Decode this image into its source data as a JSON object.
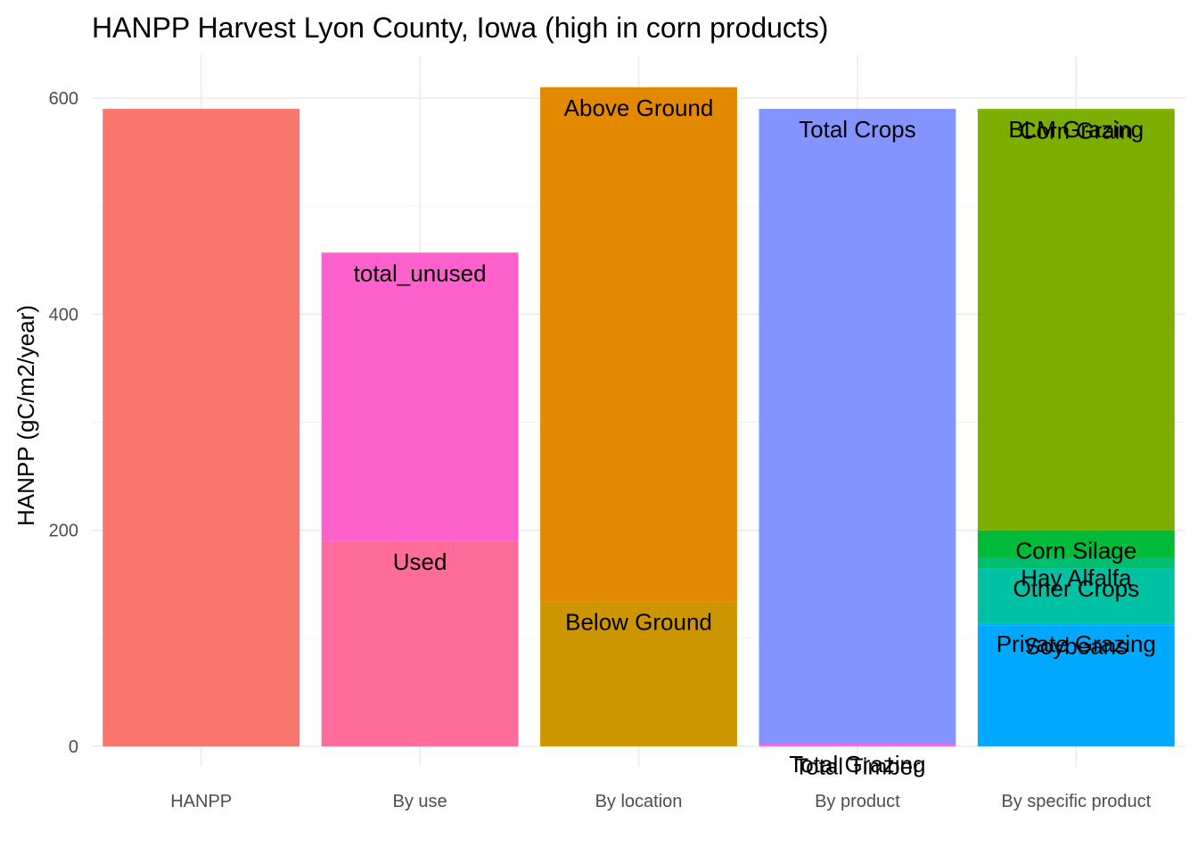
{
  "chart_data": {
    "type": "bar",
    "stacked": true,
    "title": "HANPP Harvest Lyon County, Iowa (high in corn products)",
    "xlabel": "",
    "ylabel": "HANPP (gC/m2/year)",
    "ylim": [
      0,
      640
    ],
    "yticks": [
      0,
      200,
      400,
      600
    ],
    "grid": true,
    "legend": "none",
    "categories": [
      "HANPP",
      "By use",
      "By location",
      "By product",
      "By specific product"
    ],
    "stacks": [
      {
        "category": "HANPP",
        "segments": [
          {
            "name": "",
            "value": 590,
            "color": "#F8766D",
            "label": ""
          }
        ]
      },
      {
        "category": "By use",
        "segments": [
          {
            "name": "Used",
            "value": 190,
            "color": "#FF6C9C",
            "label": "Used"
          },
          {
            "name": "total_unused",
            "value": 267,
            "color": "#FF61CC",
            "label": "total_unused"
          }
        ]
      },
      {
        "category": "By location",
        "segments": [
          {
            "name": "Below Ground",
            "value": 134,
            "color": "#CD9600",
            "label": "Below Ground"
          },
          {
            "name": "Above Ground",
            "value": 476,
            "color": "#E38900",
            "label": "Above Ground"
          }
        ]
      },
      {
        "category": "By product",
        "segments": [
          {
            "name": "Total Timber",
            "value": 0.5,
            "color": "#F763E0",
            "label": "Total Timber"
          },
          {
            "name": "Total Grazing",
            "value": 2,
            "color": "#E76BF3",
            "label": "Total Grazing"
          },
          {
            "name": "Total Crops",
            "value": 587.5,
            "color": "#8494FF",
            "label": "Total Crops"
          }
        ]
      },
      {
        "category": "By specific product",
        "segments": [
          {
            "name": "Soybeans",
            "value": 112,
            "color": "#00A9FF",
            "label": "Soybeans"
          },
          {
            "name": "Private Grazing",
            "value": 2,
            "color": "#00B4F0",
            "label": "Private Grazing"
          },
          {
            "name": "Other Crops",
            "value": 51,
            "color": "#00C1A3",
            "label": "Other Crops"
          },
          {
            "name": "Hay Alfalfa",
            "value": 10,
            "color": "#00BE70",
            "label": "Hay Alfalfa"
          },
          {
            "name": "Corn Silage",
            "value": 25,
            "color": "#00BA38",
            "label": "Corn Silage"
          },
          {
            "name": "Corn Grain",
            "value": 389,
            "color": "#7CAE00",
            "label": "Corn Grain"
          },
          {
            "name": "BLM Grazing",
            "value": 1,
            "color": "#7CAE00",
            "label": "BLM Grazing"
          }
        ]
      }
    ]
  }
}
